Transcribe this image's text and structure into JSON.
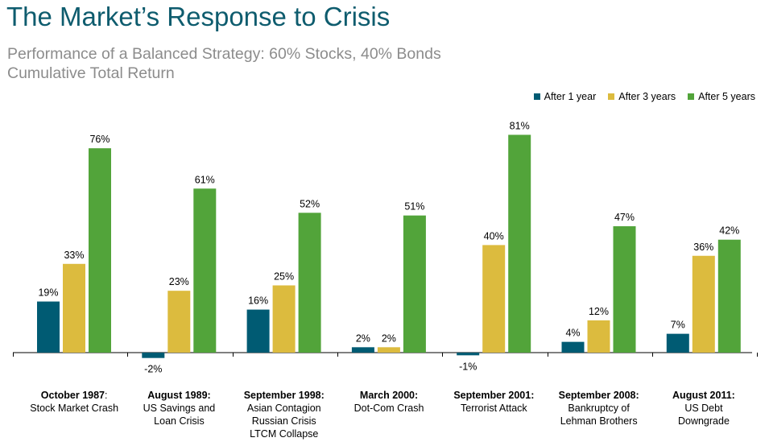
{
  "header": {
    "title": "The Market’s Response to Crisis",
    "subtitle_line1": "Performance of a Balanced Strategy: 60% Stocks, 40% Bonds",
    "subtitle_line2": "Cumulative Total Return"
  },
  "colors": {
    "title": "#0e5c6e",
    "subtitle": "#8c8c8c",
    "after_1_year": "#005b73",
    "after_3_years": "#dcbb3e",
    "after_5_years": "#52a43a",
    "axis": "#000000"
  },
  "chart_data": {
    "type": "bar",
    "title": "The Market’s Response to Crisis",
    "subtitle": "Performance of a Balanced Strategy: 60% Stocks, 40% Bonds — Cumulative Total Return",
    "legend_position": "top-right",
    "grid": false,
    "ylim": [
      -5,
      85
    ],
    "categories": [
      {
        "bold": "October 1987",
        "boldSuffix": ":",
        "rest": [
          "Stock Market Crash"
        ]
      },
      {
        "bold": "August 1989:",
        "boldSuffix": "",
        "rest": [
          "US Savings and",
          "Loan Crisis"
        ]
      },
      {
        "bold": "September 1998:",
        "boldSuffix": "",
        "rest": [
          "Asian Contagion",
          "Russian Crisis",
          "LTCM Collapse"
        ]
      },
      {
        "bold": "March 2000:",
        "boldSuffix": "",
        "rest": [
          "Dot-Com Crash"
        ]
      },
      {
        "bold": "September 2001:",
        "boldSuffix": "",
        "rest": [
          "Terrorist Attack"
        ]
      },
      {
        "bold": "September 2008:",
        "boldSuffix": "",
        "rest": [
          "Bankruptcy of",
          "Lehman Brothers"
        ]
      },
      {
        "bold": "August 2011:",
        "boldSuffix": "",
        "rest": [
          "US Debt",
          "Downgrade"
        ]
      }
    ],
    "series": [
      {
        "name": "After 1 year",
        "color": "#005b73",
        "values": [
          19,
          -2,
          16,
          2,
          -1,
          4,
          7
        ],
        "labels": [
          "19%",
          "-2%",
          "16%",
          "2%",
          "-1%",
          "4%",
          "7%"
        ]
      },
      {
        "name": "After 3 years",
        "color": "#dcbb3e",
        "values": [
          33,
          23,
          25,
          2,
          40,
          12,
          36
        ],
        "labels": [
          "33%",
          "23%",
          "25%",
          "2%",
          "40%",
          "12%",
          "36%"
        ]
      },
      {
        "name": "After 5 years",
        "color": "#52a43a",
        "values": [
          76,
          61,
          52,
          51,
          81,
          47,
          42
        ],
        "labels": [
          "76%",
          "61%",
          "52%",
          "51%",
          "81%",
          "47%",
          "42%"
        ]
      }
    ]
  }
}
